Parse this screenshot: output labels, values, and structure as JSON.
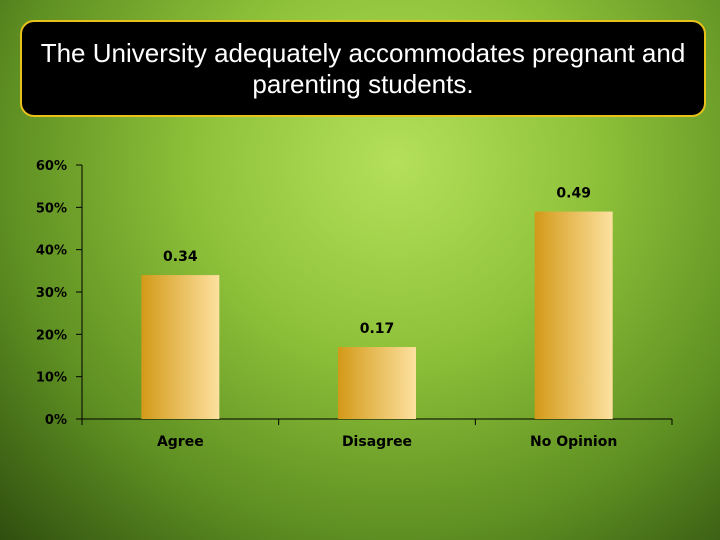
{
  "title": "The University adequately accommodates pregnant and parenting students.",
  "colors": {
    "bar_light": "#fde1a0",
    "bar_dark": "#d39a18",
    "title_border": "#e8c11a"
  },
  "chart_data": {
    "type": "bar",
    "categories": [
      "Agree",
      "Disagree",
      "No Opinion"
    ],
    "values": [
      0.34,
      0.17,
      0.49
    ],
    "data_labels": [
      "0.34",
      "0.17",
      "0.49"
    ],
    "yticks": [
      "0%",
      "10%",
      "20%",
      "30%",
      "40%",
      "50%",
      "60%"
    ],
    "ylim": [
      0,
      0.6
    ],
    "xlabel": "",
    "ylabel": "",
    "grid": false,
    "legend": "none"
  }
}
